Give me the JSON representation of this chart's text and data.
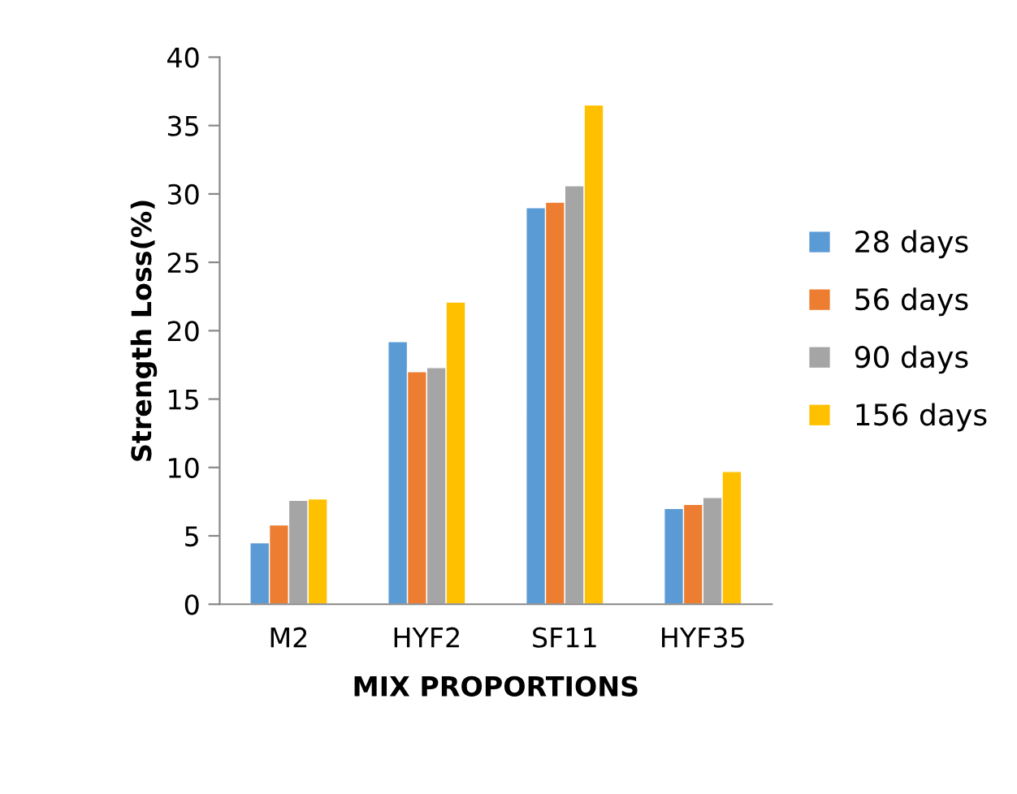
{
  "chart_data": {
    "type": "bar",
    "xlabel": "MIX PROPORTIONS",
    "ylabel": "Strength Loss(%)",
    "categories": [
      "M2",
      "HYF2",
      "SF11",
      "HYF35"
    ],
    "series": [
      {
        "name": "28 days",
        "color": "#5b9bd5",
        "values": [
          4.5,
          19.2,
          29.0,
          7.0
        ]
      },
      {
        "name": "56 days",
        "color": "#ed7d31",
        "values": [
          5.8,
          17.0,
          29.4,
          7.3
        ]
      },
      {
        "name": "90 days",
        "color": "#a5a5a5",
        "values": [
          7.6,
          17.3,
          30.6,
          7.8
        ]
      },
      {
        "name": "156 days",
        "color": "#ffc000",
        "values": [
          7.7,
          22.1,
          36.5,
          9.7
        ]
      }
    ],
    "ylim": [
      0,
      40
    ],
    "yticks": [
      0,
      5,
      10,
      15,
      20,
      25,
      30,
      35,
      40
    ],
    "grid": false,
    "legend": "right"
  }
}
